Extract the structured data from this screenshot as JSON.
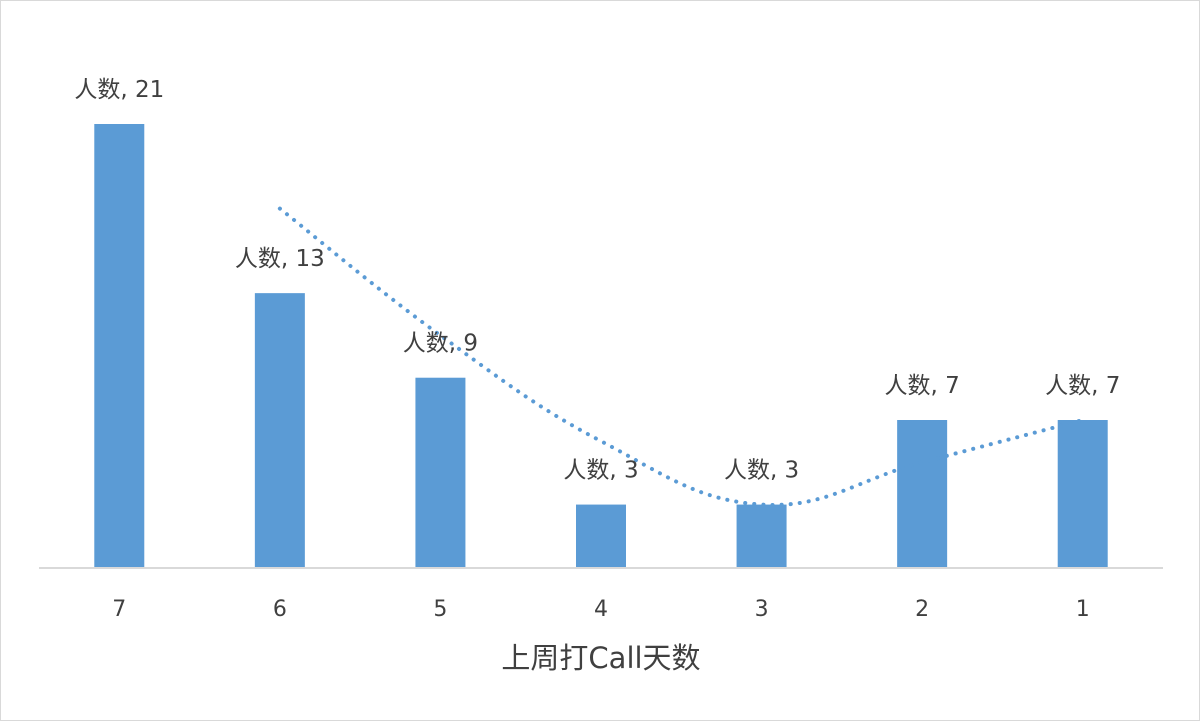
{
  "chart_data": {
    "type": "bar",
    "title": "",
    "xlabel": "上周打Call天数",
    "ylabel": "",
    "categories": [
      "7",
      "6",
      "5",
      "4",
      "3",
      "2",
      "1"
    ],
    "series": [
      {
        "name": "人数",
        "values": [
          21,
          13,
          9,
          3,
          3,
          7,
          7
        ],
        "color": "#5B9BD5"
      }
    ],
    "data_labels": [
      "人数, 21",
      "人数, 13",
      "人数, 9",
      "人数, 3",
      "人数, 3",
      "人数, 7",
      "人数, 7"
    ],
    "trendline": {
      "type": "moving-average",
      "period": 2,
      "style": "dotted",
      "color": "#5B9BD5"
    },
    "ylim": [
      0,
      21
    ],
    "grid": false,
    "legend": "none"
  }
}
